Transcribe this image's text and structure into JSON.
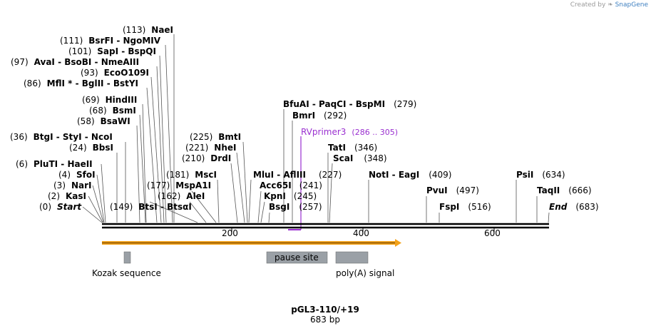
{
  "branding": {
    "created_by": "Created by",
    "product": "SnapGene"
  },
  "map": {
    "name": "pGL3-110/+19",
    "length_label": "683 bp",
    "length": 683
  },
  "ruler": {
    "ticks": [
      "200",
      "400",
      "600"
    ]
  },
  "sites": [
    {
      "name": "Start",
      "pos": "(0)",
      "style": "italic"
    },
    {
      "name": "KasI",
      "pos": "(2)"
    },
    {
      "name": "NarI",
      "pos": "(3)"
    },
    {
      "name": "SfoI",
      "pos": "(4)"
    },
    {
      "name": "PluTI - HaeII",
      "pos": "(6)"
    },
    {
      "name": "BbsI",
      "pos": "(24)"
    },
    {
      "name": "BtgI - StyI - NcoI",
      "pos": "(36)"
    },
    {
      "name": "BsaWI",
      "pos": "(58)"
    },
    {
      "name": "BsmI",
      "pos": "(68)"
    },
    {
      "name": "HindIII",
      "pos": "(69)"
    },
    {
      "name": "MflI * - BglII - BstYI",
      "pos": "(86)"
    },
    {
      "name": "EcoO109I",
      "pos": "(93)"
    },
    {
      "name": "AvaI - BsoBI - NmeAIII",
      "pos": "(97)"
    },
    {
      "name": "SapI - BspQI",
      "pos": "(101)"
    },
    {
      "name": "BsrFI - NgoMIV",
      "pos": "(111)"
    },
    {
      "name": "NaeI",
      "pos": "(113)"
    },
    {
      "name": "BtsI - BtsαI",
      "pos": "(149)"
    },
    {
      "name": "AleI",
      "pos": "(162)"
    },
    {
      "name": "MspA1I",
      "pos": "(177)"
    },
    {
      "name": "MscI",
      "pos": "(181)"
    },
    {
      "name": "DrdI",
      "pos": "(210)"
    },
    {
      "name": "NheI",
      "pos": "(221)"
    },
    {
      "name": "BmtI",
      "pos": "(225)"
    },
    {
      "name": "MluI - AflIII",
      "pos": "(227)"
    },
    {
      "name": "Acc65I",
      "pos": "(241)"
    },
    {
      "name": "KpnI",
      "pos": "(245)"
    },
    {
      "name": "BsgI",
      "pos": "(257)"
    },
    {
      "name": "BfuAI - PaqCI - BspMI",
      "pos": "(279)"
    },
    {
      "name": "BmrI",
      "pos": "(292)"
    },
    {
      "name": "TatI",
      "pos": "(346)"
    },
    {
      "name": "ScaI",
      "pos": "(348)"
    },
    {
      "name": "NotI - EagI",
      "pos": "(409)"
    },
    {
      "name": "PvuI",
      "pos": "(497)"
    },
    {
      "name": "FspI",
      "pos": "(516)"
    },
    {
      "name": "PsiI",
      "pos": "(634)"
    },
    {
      "name": "TaqII",
      "pos": "(666)"
    },
    {
      "name": "End",
      "pos": "(683)",
      "style": "italic"
    }
  ],
  "primer": {
    "name": "RVprimer3",
    "range": "(286 .. 305)",
    "color": "#9a30d0"
  },
  "features": {
    "kozak": "Kozak sequence",
    "pause": "pause site",
    "polya": "poly(A) signal",
    "arrow_color": "#f3a21a",
    "box_color": "#9aa0a6"
  }
}
